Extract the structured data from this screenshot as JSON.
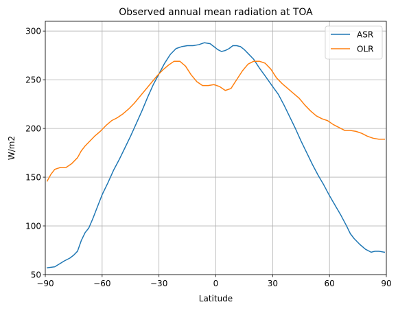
{
  "chart_data": {
    "type": "line",
    "title": "Observed annual mean radiation at TOA",
    "xlabel": "Latitude",
    "ylabel": "W/m2",
    "xlim": [
      -90,
      90
    ],
    "ylim": [
      50,
      310
    ],
    "xticks": [
      -90,
      -60,
      -30,
      0,
      30,
      60,
      90
    ],
    "yticks": [
      50,
      100,
      150,
      200,
      250,
      300
    ],
    "grid": true,
    "legend_position": "top-right",
    "series": [
      {
        "name": "ASR",
        "color": "#1f77b4",
        "x": [
          -89,
          -85,
          -80,
          -77,
          -75,
          -73,
          -71,
          -69,
          -67,
          -65,
          -63,
          -60,
          -57,
          -54,
          -51,
          -48,
          -45,
          -42,
          -39,
          -36,
          -33,
          -30,
          -27,
          -24,
          -21,
          -18,
          -15,
          -12,
          -9,
          -6,
          -3,
          -1,
          1,
          3,
          5,
          7,
          9,
          11,
          13,
          15,
          17,
          20,
          23,
          26,
          30,
          33,
          36,
          39,
          42,
          45,
          48,
          51,
          54,
          57,
          60,
          63,
          66,
          69,
          71,
          73,
          76,
          79,
          82,
          84,
          86,
          89
        ],
        "y": [
          57,
          58,
          64,
          67,
          70,
          74,
          85,
          93,
          98,
          107,
          117,
          132,
          144,
          157,
          168,
          180,
          192,
          205,
          218,
          232,
          245,
          256,
          267,
          276,
          282,
          284,
          285,
          285,
          286,
          288,
          287,
          284,
          281,
          279,
          280,
          282,
          285,
          285,
          284,
          281,
          277,
          271,
          262,
          254,
          243,
          235,
          224,
          212,
          200,
          187,
          175,
          163,
          152,
          142,
          131,
          121,
          111,
          100,
          92,
          87,
          81,
          76,
          73,
          74,
          74,
          73
        ]
      },
      {
        "name": "OLR",
        "color": "#ff7f0e",
        "x": [
          -89,
          -87,
          -85,
          -82,
          -79,
          -76,
          -73,
          -71,
          -69,
          -67,
          -64,
          -61,
          -58,
          -55,
          -52,
          -49,
          -46,
          -43,
          -40,
          -37,
          -34,
          -31,
          -28,
          -25,
          -22,
          -19,
          -16,
          -13,
          -10,
          -7,
          -4,
          -1,
          2,
          5,
          8,
          11,
          14,
          17,
          20,
          23,
          26,
          29,
          32,
          35,
          38,
          41,
          44,
          47,
          50,
          53,
          56,
          59,
          62,
          65,
          68,
          71,
          74,
          77,
          80,
          83,
          86,
          89
        ],
        "y": [
          146,
          153,
          158,
          160,
          160,
          164,
          170,
          177,
          182,
          186,
          192,
          197,
          203,
          208,
          211,
          215,
          220,
          226,
          233,
          240,
          247,
          254,
          260,
          265,
          269,
          269,
          264,
          255,
          248,
          244,
          244,
          245,
          243,
          239,
          241,
          250,
          259,
          266,
          269,
          269,
          267,
          261,
          252,
          246,
          241,
          236,
          231,
          224,
          218,
          213,
          210,
          208,
          204,
          201,
          198,
          198,
          197,
          195,
          192,
          190,
          189,
          189
        ]
      }
    ]
  }
}
